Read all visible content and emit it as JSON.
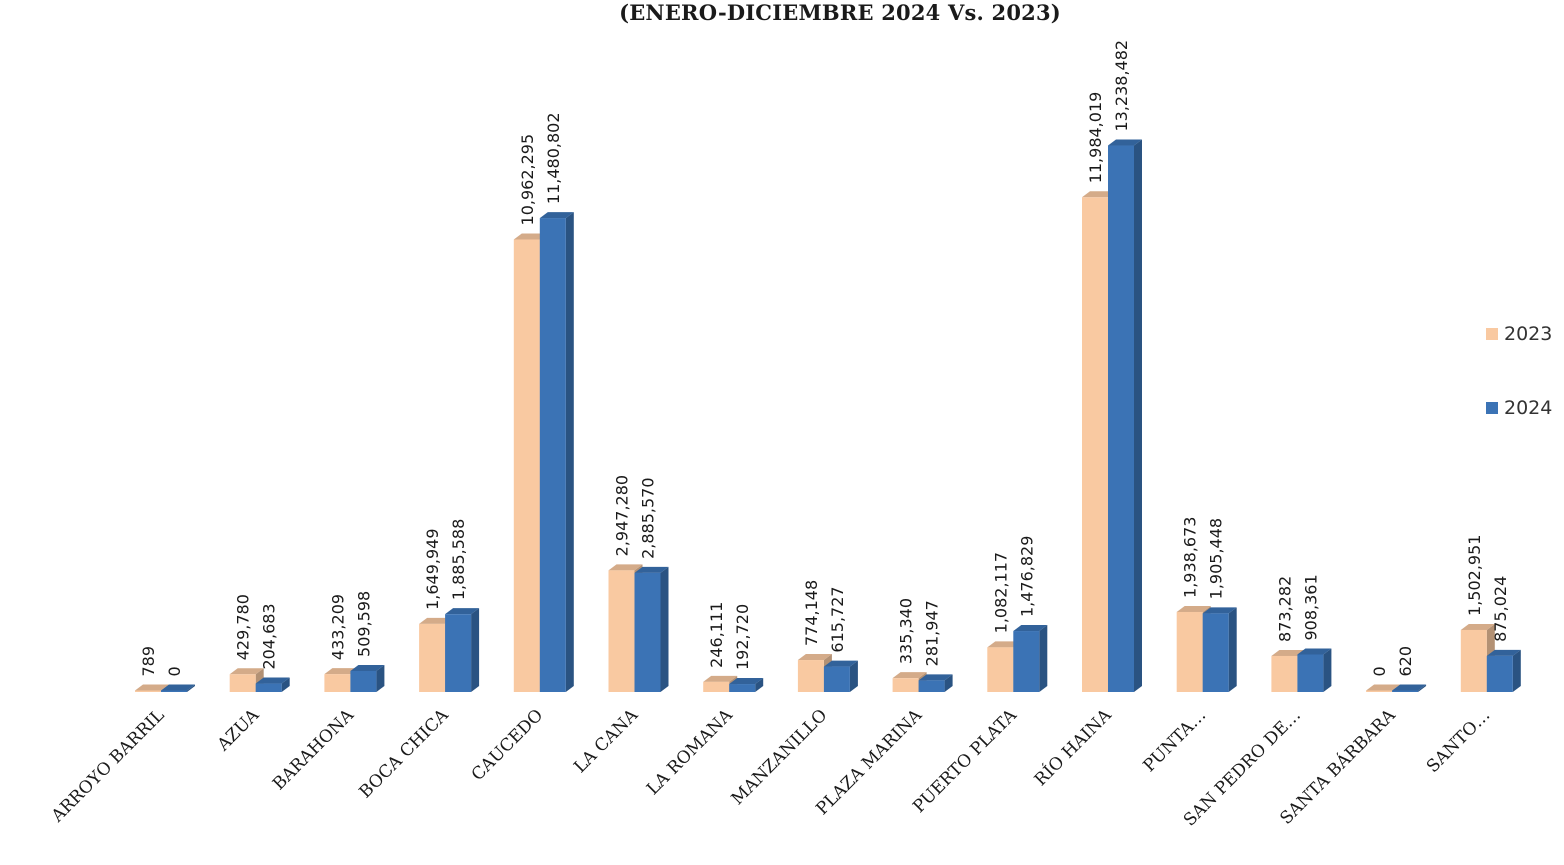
{
  "chart_data": {
    "type": "bar",
    "title": "(ENERO-DICIEMBRE 2024 Vs. 2023)",
    "xlabel": "",
    "ylabel": "",
    "ylim": [
      0,
      14000000
    ],
    "grid": false,
    "legend_position": "right",
    "categories": [
      "ARROYO BARRIL",
      "AZUA",
      "BARAHONA",
      "BOCA CHICA",
      "CAUCEDO",
      "LA CANA",
      "LA ROMANA",
      "MANZANILLO",
      "PLAZA MARINA",
      "PUERTO PLATA",
      "RÍO HAINA",
      "PUNTA…",
      "SAN PEDRO DE…",
      "SANTA BÁRBARA",
      "SANTO…"
    ],
    "series": [
      {
        "name": "2023",
        "color": "#F9C9A1",
        "values": [
          789,
          429780,
          433209,
          1649949,
          10962295,
          2947280,
          246111,
          774148,
          335340,
          1082117,
          11984019,
          1938673,
          873282,
          0,
          1502951
        ],
        "labels": [
          "789",
          "429,780",
          "433,209",
          "1,649,949",
          "10,962,295",
          "2,947,280",
          "246,111",
          "774,148",
          "335,340",
          "1,082,117",
          "11,984,019",
          "1,938,673",
          "873,282",
          "0",
          "1,502,951"
        ]
      },
      {
        "name": "2024",
        "color": "#3B73B5",
        "values": [
          0,
          204683,
          509598,
          1885588,
          11480802,
          2885570,
          192720,
          615727,
          281947,
          1476829,
          13238482,
          1905448,
          908361,
          620,
          875024
        ],
        "labels": [
          "0",
          "204,683",
          "509,598",
          "1,885,588",
          "11,480,802",
          "2,885,570",
          "192,720",
          "615,727",
          "281,947",
          "1,476,829",
          "13,238,482",
          "1,905,448",
          "908,361",
          "620",
          "875,024"
        ]
      }
    ]
  }
}
